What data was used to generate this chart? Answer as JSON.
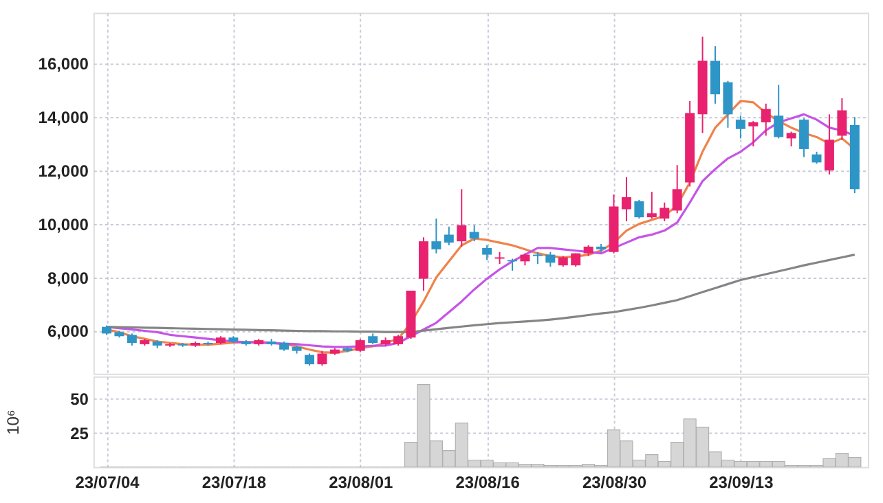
{
  "chart_data": [
    {
      "type": "candlestick",
      "categories": [
        null,
        null,
        null,
        null,
        null,
        null,
        null,
        null,
        null,
        null,
        null,
        null,
        null,
        null,
        null,
        null,
        null,
        null,
        null,
        null,
        null,
        null,
        null,
        null,
        null,
        null,
        null,
        null,
        null,
        null,
        null,
        null,
        null,
        null,
        null,
        null,
        null,
        null,
        null,
        null,
        null,
        null,
        null,
        null,
        null,
        null,
        null,
        null,
        null,
        null,
        null,
        null,
        null,
        null,
        null,
        null,
        null,
        null,
        null,
        null
      ],
      "ohlc": [
        [
          6150,
          6200,
          5850,
          5900
        ],
        [
          5950,
          6000,
          5750,
          5800
        ],
        [
          5850,
          5900,
          5450,
          5550
        ],
        [
          5500,
          5700,
          5450,
          5650
        ],
        [
          5600,
          5650,
          5350,
          5450
        ],
        [
          5450,
          5550,
          5400,
          5500
        ],
        [
          5500,
          5550,
          5400,
          5450
        ],
        [
          5450,
          5600,
          5400,
          5550
        ],
        [
          5550,
          5600,
          5450,
          5500
        ],
        [
          5550,
          5800,
          5500,
          5750
        ],
        [
          5750,
          5800,
          5550,
          5600
        ],
        [
          5600,
          5650,
          5450,
          5500
        ],
        [
          5500,
          5700,
          5450,
          5650
        ],
        [
          5600,
          5700,
          5450,
          5500
        ],
        [
          5550,
          5600,
          5250,
          5300
        ],
        [
          5400,
          5450,
          5150,
          5250
        ],
        [
          5100,
          5150,
          4700,
          4750
        ],
        [
          4750,
          5250,
          4700,
          5150
        ],
        [
          5150,
          5350,
          5100,
          5300
        ],
        [
          5350,
          5400,
          5200,
          5250
        ],
        [
          5250,
          5700,
          5200,
          5650
        ],
        [
          5800,
          5900,
          5500,
          5550
        ],
        [
          5500,
          5750,
          5450,
          5650
        ],
        [
          5500,
          5850,
          5450,
          5800
        ],
        [
          5750,
          7500,
          5700,
          7500
        ],
        [
          7950,
          9500,
          7500,
          9350
        ],
        [
          9350,
          10200,
          8900,
          9050
        ],
        [
          9600,
          9900,
          9200,
          9300
        ],
        [
          9350,
          11300,
          9150,
          9950
        ],
        [
          9700,
          9950,
          9350,
          9450
        ],
        [
          9100,
          9200,
          8650,
          8850
        ],
        [
          8700,
          8950,
          8500,
          8750
        ],
        [
          8650,
          8700,
          8250,
          8600
        ],
        [
          8600,
          8900,
          8450,
          8850
        ],
        [
          8850,
          8950,
          8500,
          8800
        ],
        [
          8850,
          8950,
          8400,
          8550
        ],
        [
          8450,
          8800,
          8400,
          8750
        ],
        [
          8450,
          8900,
          8400,
          8900
        ],
        [
          8900,
          9200,
          8800,
          9150
        ],
        [
          9150,
          9250,
          8950,
          9050
        ],
        [
          8950,
          11100,
          8900,
          10650
        ],
        [
          10550,
          11750,
          10100,
          11000
        ],
        [
          10850,
          10900,
          10200,
          10250
        ],
        [
          10250,
          11200,
          10200,
          10400
        ],
        [
          10200,
          10800,
          10100,
          10600
        ],
        [
          10500,
          12200,
          10400,
          11300
        ],
        [
          11550,
          14600,
          11400,
          14150
        ],
        [
          14100,
          17000,
          13400,
          16100
        ],
        [
          16100,
          16650,
          14500,
          14850
        ],
        [
          15300,
          15350,
          13600,
          14100
        ],
        [
          13900,
          14050,
          13200,
          13550
        ],
        [
          13650,
          13850,
          12900,
          13800
        ],
        [
          13800,
          14500,
          13300,
          14300
        ],
        [
          14050,
          15200,
          13200,
          13250
        ],
        [
          13200,
          13450,
          12900,
          13400
        ],
        [
          13900,
          13950,
          12500,
          12800
        ],
        [
          12600,
          12700,
          12250,
          12300
        ],
        [
          12000,
          14100,
          11850,
          13150
        ],
        [
          13300,
          14700,
          13150,
          14250
        ],
        [
          13700,
          14000,
          11150,
          11300
        ]
      ],
      "colors": [
        "#2e95c7",
        "#2e95c7",
        "#2e95c7",
        "#e8226e",
        "#2e95c7",
        "#e8226e",
        "#2e95c7",
        "#e8226e",
        "#2e95c7",
        "#e8226e",
        "#2e95c7",
        "#2e95c7",
        "#e8226e",
        "#2e95c7",
        "#2e95c7",
        "#2e95c7",
        "#2e95c7",
        "#e8226e",
        "#e8226e",
        "#2e95c7",
        "#e8226e",
        "#2e95c7",
        "#e8226e",
        "#e8226e",
        "#e8226e",
        "#e8226e",
        "#2e95c7",
        "#2e95c7",
        "#e8226e",
        "#2e95c7",
        "#2e95c7",
        "#e8226e",
        "#2e95c7",
        "#e8226e",
        "#2e95c7",
        "#2e95c7",
        "#e8226e",
        "#e8226e",
        "#e8226e",
        "#2e95c7",
        "#e8226e",
        "#e8226e",
        "#2e95c7",
        "#e8226e",
        "#e8226e",
        "#e8226e",
        "#e8226e",
        "#e8226e",
        "#2e95c7",
        "#2e95c7",
        "#2e95c7",
        "#e8226e",
        "#e8226e",
        "#2e95c7",
        "#e8226e",
        "#2e95c7",
        "#2e95c7",
        "#e8226e",
        "#e8226e",
        "#2e95c7"
      ],
      "series": [
        {
          "type": "line",
          "color": "#f0824a",
          "values": [
            6050,
            5950,
            5800,
            5700,
            5600,
            5550,
            5500,
            5480,
            5480,
            5520,
            5560,
            5580,
            5580,
            5560,
            5500,
            5420,
            5300,
            5200,
            5180,
            5250,
            5350,
            5420,
            5550,
            5700,
            6300,
            7100,
            8000,
            8600,
            9200,
            9450,
            9400,
            9300,
            9200,
            9050,
            8900,
            8800,
            8750,
            8780,
            8850,
            9000,
            9300,
            9750,
            10000,
            10150,
            10300,
            10700,
            11550,
            12700,
            13600,
            14100,
            14600,
            14550,
            14150,
            13850,
            13600,
            13400,
            13250,
            13000,
            13200,
            12800
          ]
        },
        {
          "type": "line",
          "color": "#c653e8",
          "values": [
            6150,
            6100,
            6050,
            6000,
            5950,
            5850,
            5800,
            5750,
            5700,
            5650,
            5600,
            5580,
            5560,
            5540,
            5520,
            5500,
            5460,
            5420,
            5400,
            5400,
            5420,
            5440,
            5450,
            5550,
            5800,
            6050,
            6300,
            6700,
            7100,
            7550,
            7950,
            8300,
            8600,
            8850,
            9100,
            9100,
            9050,
            9000,
            8950,
            8900,
            9100,
            9300,
            9500,
            9600,
            9750,
            10050,
            10800,
            11600,
            12050,
            12450,
            12700,
            13050,
            13500,
            13800,
            13950,
            14100,
            13900,
            13600,
            13500,
            13300
          ]
        },
        {
          "type": "line",
          "color": "#858585",
          "values": [
            6150,
            6140,
            6130,
            6120,
            6110,
            6100,
            6090,
            6080,
            6070,
            6060,
            6050,
            6040,
            6030,
            6020,
            6010,
            6000,
            5990,
            5990,
            5980,
            5980,
            5970,
            5970,
            5960,
            5960,
            5950,
            6010,
            6060,
            6110,
            6160,
            6210,
            6250,
            6290,
            6320,
            6350,
            6380,
            6420,
            6470,
            6530,
            6590,
            6650,
            6700,
            6780,
            6860,
            6950,
            7050,
            7150,
            7300,
            7450,
            7600,
            7750,
            7900,
            8010,
            8120,
            8230,
            8340,
            8450,
            8550,
            8650,
            8750,
            8850
          ]
        }
      ],
      "ylim": [
        4400,
        17900
      ],
      "yticks": [
        {
          "value": 6000,
          "label": "6,000"
        },
        {
          "value": 8000,
          "label": "8,000"
        },
        {
          "value": 10000,
          "label": "10,000"
        },
        {
          "value": 12000,
          "label": "12,000"
        },
        {
          "value": 14000,
          "label": "14,000"
        },
        {
          "value": 16000,
          "label": "16,000"
        }
      ],
      "grid": true,
      "tick_labels": "y"
    },
    {
      "type": "bar",
      "categories": [
        "23/07/04",
        null,
        null,
        null,
        null,
        null,
        null,
        null,
        null,
        null,
        "23/07/18",
        null,
        null,
        null,
        null,
        null,
        null,
        null,
        null,
        null,
        "23/08/01",
        null,
        null,
        null,
        null,
        null,
        null,
        null,
        null,
        null,
        "23/08/16",
        null,
        null,
        null,
        null,
        null,
        null,
        null,
        null,
        null,
        "23/08/30",
        null,
        null,
        null,
        null,
        null,
        null,
        null,
        null,
        null,
        "23/09/13",
        null,
        null,
        null,
        null,
        null,
        null,
        null,
        null,
        null
      ],
      "values": [
        0,
        0,
        0,
        0,
        0,
        0,
        0,
        0,
        0,
        0,
        0,
        0,
        0,
        0,
        0,
        0,
        0,
        0,
        0,
        0,
        0,
        0,
        0,
        0,
        18,
        60,
        19,
        12,
        32,
        5,
        5,
        3,
        3,
        2,
        2,
        1,
        1,
        1,
        2,
        1,
        27,
        19,
        5,
        9,
        4,
        18,
        35,
        29,
        11,
        5,
        4,
        4,
        4,
        4,
        1,
        1,
        1,
        6,
        10,
        7
      ],
      "color": "#d6d6d6",
      "ylabel": "10⁶",
      "ylim": [
        0,
        66
      ],
      "yticks": [
        25,
        50
      ],
      "grid": true
    }
  ]
}
